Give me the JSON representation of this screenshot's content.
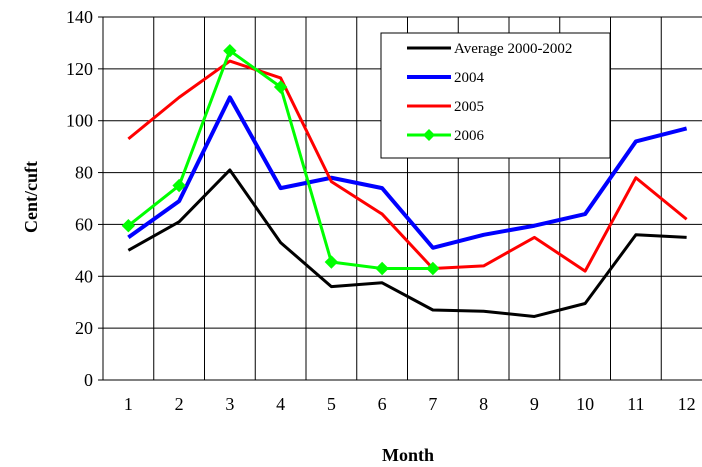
{
  "chart_data": {
    "type": "line",
    "xlabel": "Month",
    "ylabel": "Cent/cuft",
    "ylim": [
      0,
      140
    ],
    "yticks": [
      "0",
      "20",
      "40",
      "60",
      "80",
      "100",
      "120",
      "140"
    ],
    "categories": [
      "1",
      "2",
      "3",
      "4",
      "5",
      "6",
      "7",
      "8",
      "9",
      "10",
      "11",
      "12"
    ],
    "grid": true,
    "legend_position": "top-right",
    "series": [
      {
        "name": "Average 2000-2002",
        "color": "#000000",
        "marker": "none",
        "values": [
          50,
          61,
          81,
          53,
          36,
          37.5,
          27,
          26.5,
          24.5,
          29.5,
          56,
          55
        ]
      },
      {
        "name": "2004",
        "color": "#0000ff",
        "marker": "none",
        "values": [
          55,
          69,
          109,
          74,
          78,
          74,
          51,
          56,
          59.5,
          64,
          92,
          97
        ]
      },
      {
        "name": "2005",
        "color": "#ff0000",
        "marker": "none",
        "values": [
          93,
          109,
          123,
          116.5,
          76.5,
          64,
          43,
          44,
          55,
          42,
          78,
          62
        ]
      },
      {
        "name": "2006",
        "color": "#00ff00",
        "marker": "diamond",
        "values": [
          59.5,
          75,
          127,
          113,
          45.5,
          43,
          43,
          null,
          null,
          null,
          null,
          null
        ]
      }
    ]
  }
}
